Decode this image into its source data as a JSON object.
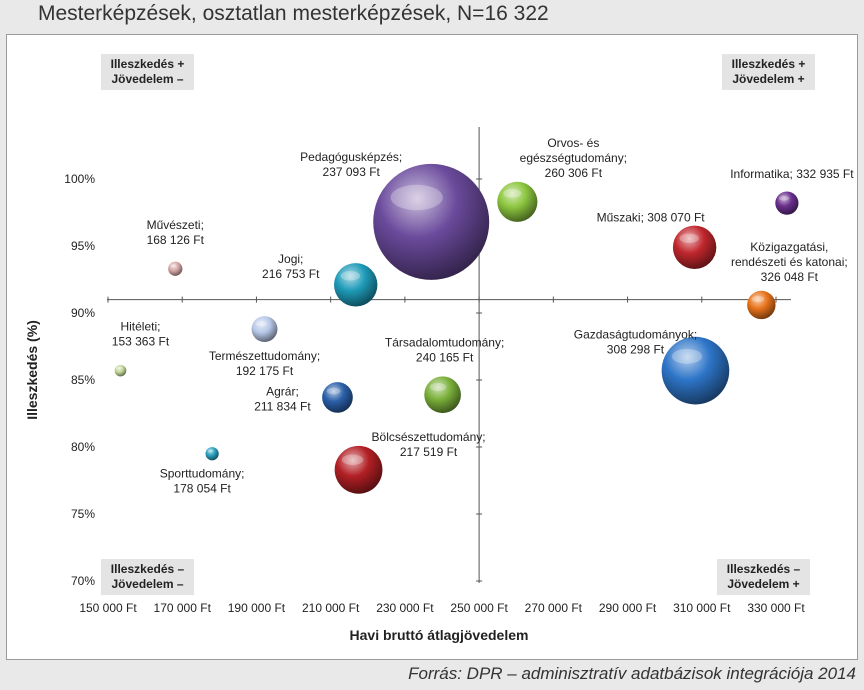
{
  "header": {
    "title": "Mesterképzések, osztatlan mesterképzések, N=16 322"
  },
  "footer": {
    "source": "Forrás: DPR – adminisztratív adatbázisok integrációja 2014"
  },
  "chart_data": {
    "type": "bubble",
    "xlabel": "Havi bruttó átlagjövedelem",
    "ylabel": "Illeszkedés (%)",
    "xlim": [
      150000,
      330000
    ],
    "ylim": [
      70,
      100
    ],
    "x_ticks": [
      "150 000 Ft",
      "170 000 Ft",
      "190 000 Ft",
      "210 000 Ft",
      "230 000 Ft",
      "250 000 Ft",
      "270 000 Ft",
      "290 000 Ft",
      "310 000 Ft",
      "330 000 Ft"
    ],
    "y_ticks": [
      "70%",
      "75%",
      "80%",
      "85%",
      "90%",
      "95%",
      "100%"
    ],
    "reference_lines": {
      "x": 250000,
      "y": 91
    },
    "grid": false,
    "quadrant_labels": [
      {
        "line1": "Illeszkedés +",
        "line2": "Jövedelem –",
        "corner": "top-left"
      },
      {
        "line1": "Illeszkedés +",
        "line2": "Jövedelem +",
        "corner": "top-right"
      },
      {
        "line1": "Illeszkedés –",
        "line2": "Jövedelem –",
        "corner": "bottom-left"
      },
      {
        "line1": "Illeszkedés –",
        "line2": "Jövedelem +",
        "corner": "bottom-right"
      }
    ],
    "series": [
      {
        "name": "Pedagógusképzés",
        "income_label": "237 093 Ft",
        "x": 237093,
        "y": 96.8,
        "size": 100,
        "color": "#6a4a9c",
        "label_pos": "upper-left"
      },
      {
        "name": "Orvos- és egészségtudomány",
        "income_label": "260 306 Ft",
        "x": 260306,
        "y": 98.3,
        "size": 12,
        "color": "#8cc63f",
        "label_pos": "above"
      },
      {
        "name": "Informatika",
        "income_label": "332 935 Ft",
        "x": 332935,
        "y": 98.2,
        "size": 4,
        "color": "#6a2f8e",
        "label_pos": "above-left"
      },
      {
        "name": "Műszaki",
        "income_label": "308 070 Ft",
        "x": 308070,
        "y": 94.9,
        "size": 14,
        "color": "#c0272d",
        "label_pos": "above-left"
      },
      {
        "name": "Közigazgatási, rendészeti és katonai",
        "income_label": "326 048 Ft",
        "x": 326048,
        "y": 90.6,
        "size": 6,
        "color": "#e8731a",
        "label_pos": "upper-right"
      },
      {
        "name": "Gazdaságtudományok",
        "income_label": "308 298 Ft",
        "x": 308298,
        "y": 85.7,
        "size": 34,
        "color": "#2e75c8",
        "label_pos": "upper-left"
      },
      {
        "name": "Művészeti",
        "income_label": "168 126 Ft",
        "x": 168126,
        "y": 93.3,
        "size": 1.5,
        "color": "#d7a9a9",
        "label_pos": "above"
      },
      {
        "name": "Jogi",
        "income_label": "216 753 Ft",
        "x": 216753,
        "y": 92.1,
        "size": 14,
        "color": "#1e9bb8",
        "label_pos": "left"
      },
      {
        "name": "Hitéleti",
        "income_label": "153 363 Ft",
        "x": 153363,
        "y": 85.7,
        "size": 1,
        "color": "#c5d99a",
        "label_pos": "above-right"
      },
      {
        "name": "Természettudomány",
        "income_label": "192 175 Ft",
        "x": 192175,
        "y": 88.8,
        "size": 5,
        "color": "#b8c8e8",
        "label_pos": "below"
      },
      {
        "name": "Agrár",
        "income_label": "211 834 Ft",
        "x": 211834,
        "y": 83.7,
        "size": 7,
        "color": "#2a5fa8",
        "label_pos": "left"
      },
      {
        "name": "Társadalomtudomány",
        "income_label": "240 165 Ft",
        "x": 240165,
        "y": 83.9,
        "size": 10,
        "color": "#7ab03a",
        "label_pos": "above"
      },
      {
        "name": "Bölcsészettudomány",
        "income_label": "217 519 Ft",
        "x": 217519,
        "y": 78.3,
        "size": 17,
        "color": "#b21f24",
        "label_pos": "upper-right"
      },
      {
        "name": "Sporttudomány",
        "income_label": "178 054 Ft",
        "x": 178054,
        "y": 79.5,
        "size": 1.3,
        "color": "#2aa0c0",
        "label_pos": "below"
      }
    ]
  }
}
